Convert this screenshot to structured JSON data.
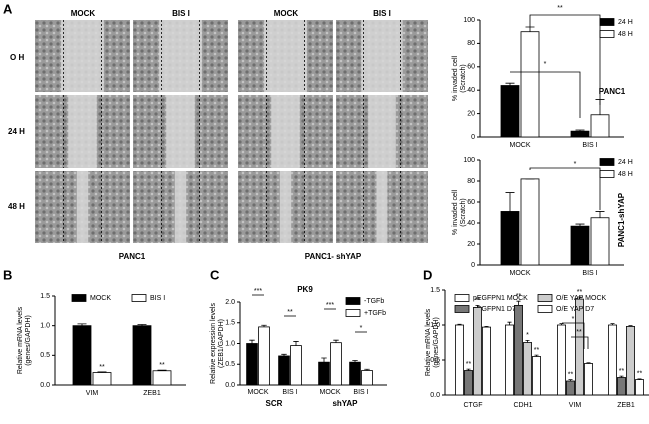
{
  "panel_labels": [
    "A",
    "B",
    "C",
    "D"
  ],
  "image_grid": {
    "column_labels": [
      "MOCK",
      "BIS I",
      "MOCK",
      "BIS I"
    ],
    "row_labels": [
      "O H",
      "24 H",
      "48 H"
    ],
    "group_labels": [
      "PANC1",
      "PANC1- shYAP"
    ]
  },
  "chart_data": [
    {
      "type": "bar",
      "side_title": "PANC1",
      "y_label": [
        "% invaded cell",
        "(Scratch)"
      ],
      "categories": [
        "MOCK",
        "BIS I"
      ],
      "series": [
        {
          "name": "24 H",
          "color": "#000000",
          "values": [
            44,
            5
          ],
          "errors": [
            2,
            1
          ]
        },
        {
          "name": "48 H",
          "color": "#ffffff",
          "values": [
            90,
            19
          ],
          "errors": [
            4,
            13
          ]
        }
      ],
      "ylim": [
        0,
        100
      ],
      "yticks": [
        0,
        20,
        40,
        60,
        80,
        100
      ],
      "annotations": [
        "**",
        "*"
      ]
    },
    {
      "type": "bar",
      "side_title": "PANC1-shYAP",
      "y_label": [
        "% invaded cell",
        "(Scratch)"
      ],
      "categories": [
        "MOCK",
        "BIS I"
      ],
      "series": [
        {
          "name": "24 H",
          "color": "#000000",
          "values": [
            51,
            37
          ],
          "errors": [
            18,
            2
          ]
        },
        {
          "name": "48 H",
          "color": "#ffffff",
          "values": [
            82,
            45
          ],
          "errors": [
            0,
            6
          ]
        }
      ],
      "ylim": [
        0,
        100
      ],
      "yticks": [
        0,
        20,
        40,
        60,
        80,
        100
      ],
      "annotations": [
        "*"
      ]
    },
    {
      "type": "bar",
      "y_label": [
        "Relative mRNA levels",
        "(genes/GAPDH)"
      ],
      "categories": [
        "VIM",
        "ZEB1"
      ],
      "series": [
        {
          "name": "MOCK",
          "color": "#000000",
          "values": [
            1.0,
            1.0
          ],
          "errors": [
            0.03,
            0.02
          ]
        },
        {
          "name": "BIS I",
          "color": "#ffffff",
          "values": [
            0.21,
            0.24
          ],
          "errors": [
            0.01,
            0.01
          ]
        }
      ],
      "ylim": [
        0,
        1.5
      ],
      "yticks": [
        {
          "value": 0,
          "label": "0.0"
        },
        0.5,
        {
          "value": 1,
          "label": "1.0"
        },
        1.5
      ],
      "annotations": [
        "**",
        "**"
      ]
    },
    {
      "type": "bar",
      "title": "PK9",
      "y_label": [
        "Relative expression levels",
        "(ZEB1/GAPDH)"
      ],
      "categories": [
        "MOCK",
        "BIS I",
        "MOCK",
        "BIS I"
      ],
      "groups": [
        "SCR",
        "shYAP"
      ],
      "series": [
        {
          "name": "-TGFb",
          "color": "#000000",
          "values": [
            1.0,
            0.7,
            0.55,
            0.55
          ],
          "errors": [
            0.08,
            0.04,
            0.1,
            0.04
          ]
        },
        {
          "name": "+TGFb",
          "color": "#ffffff",
          "values": [
            1.4,
            0.95,
            1.02,
            0.35
          ],
          "errors": [
            0.04,
            0.1,
            0.06,
            0.03
          ]
        }
      ],
      "ylim": [
        0,
        2.0
      ],
      "yticks": [
        {
          "value": 0,
          "label": "0.0"
        },
        0.5,
        {
          "value": 1,
          "label": "1.0"
        },
        1.5,
        {
          "value": 2,
          "label": "2.0"
        }
      ],
      "annotations": [
        "***",
        "**",
        "***",
        "*"
      ]
    },
    {
      "type": "bar",
      "y_label": [
        "Relative mRNA levels",
        "(genes/GAPDH)"
      ],
      "categories": [
        "CTGF",
        "CDH1",
        "VIM",
        "ZEB1"
      ],
      "series": [
        {
          "name": "pEGFPN1 MOCK",
          "color": "#ffffff",
          "values": [
            1.0,
            1.0,
            1.0,
            1.0
          ],
          "errors": [
            0.01,
            0.04,
            0.02,
            0.02
          ]
        },
        {
          "name": "pEGFPN1 D7",
          "color": "#777777",
          "values": [
            0.35,
            1.28,
            0.2,
            0.25
          ],
          "errors": [
            0.02,
            0.06,
            0.02,
            0.02
          ]
        },
        {
          "name": "O/E YAP MOCK",
          "color": "#cccccc",
          "values": [
            1.25,
            0.75,
            1.37,
            0.98
          ],
          "errors": [
            0.03,
            0.03,
            0.03,
            0.01
          ]
        },
        {
          "name": "O/E YAP D7",
          "color": "#ffffff",
          "values": [
            0.97,
            0.55,
            0.45,
            0.22
          ],
          "errors": [
            0.01,
            0.02,
            0.01,
            0.01
          ]
        }
      ],
      "ylim": [
        0,
        1.5
      ],
      "yticks": [
        {
          "value": 0,
          "label": "0.0"
        },
        0.5,
        {
          "value": 1,
          "label": "1.0"
        },
        1.5
      ],
      "annotations": [
        "**",
        "**",
        "**",
        "*",
        "**",
        "**",
        "**",
        "**",
        "*",
        "**",
        "**"
      ]
    }
  ]
}
